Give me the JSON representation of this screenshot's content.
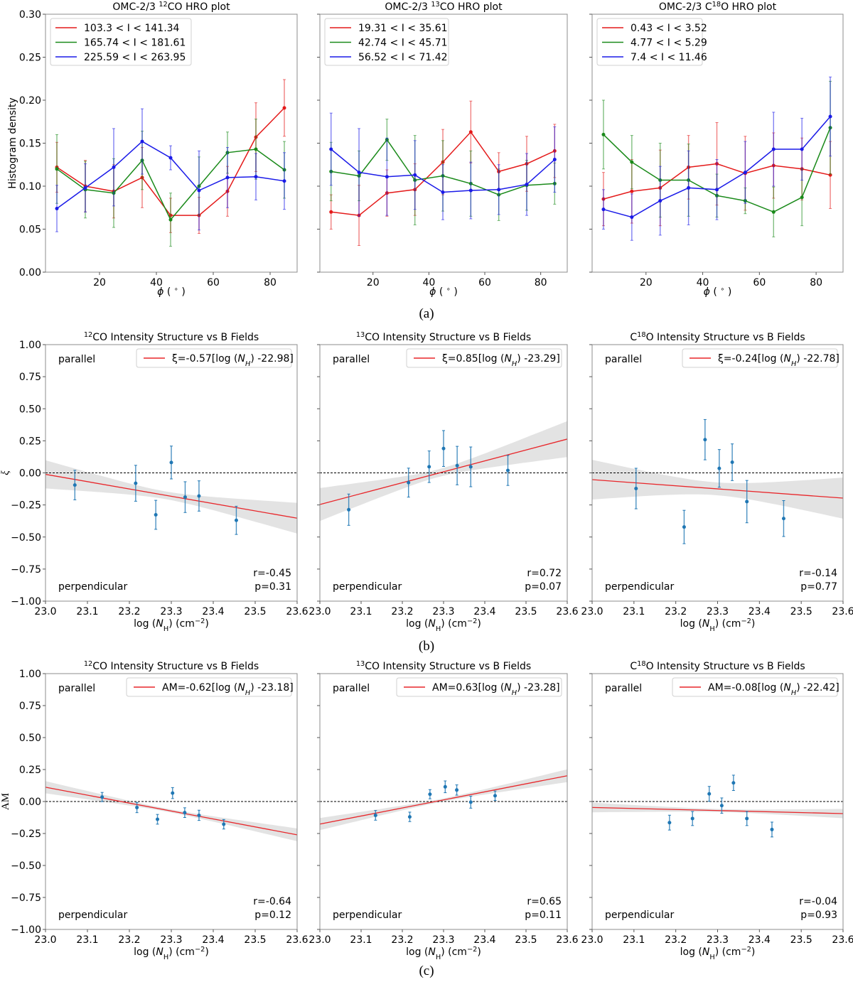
{
  "figure": {
    "captions": [
      "(a)",
      "(b)",
      "(c)"
    ]
  },
  "chart_data": [
    {
      "type": "line",
      "title": "OMC-2/3 ¹²CO HRO plot",
      "xlabel": "ϕ (°)",
      "ylabel": "Histogram density",
      "xlim": [
        1,
        89.5
      ],
      "ylim": [
        0,
        0.3
      ],
      "xticks": [
        20,
        40,
        60,
        80
      ],
      "yticks": [
        0.0,
        0.05,
        0.1,
        0.15,
        0.2,
        0.25,
        0.3
      ],
      "legend_position": "top-left",
      "x": [
        5,
        15,
        25,
        35,
        45,
        55,
        65,
        75,
        85
      ],
      "series": [
        {
          "name": "103.3 < I < 141.34",
          "color": "#e41a1a",
          "values": [
            0.122,
            0.1,
            0.094,
            0.11,
            0.066,
            0.066,
            0.094,
            0.157,
            0.191
          ],
          "errors": [
            0.029,
            0.03,
            0.031,
            0.035,
            0.02,
            0.021,
            0.029,
            0.04,
            0.033
          ]
        },
        {
          "name": "165.74 < I < 181.61",
          "color": "#1a8a1a",
          "values": [
            0.12,
            0.096,
            0.092,
            0.13,
            0.061,
            0.1,
            0.139,
            0.143,
            0.119
          ],
          "errors": [
            0.04,
            0.033,
            0.04,
            0.034,
            0.031,
            0.034,
            0.024,
            0.035,
            0.033
          ]
        },
        {
          "name": "225.59 < I < 263.95",
          "color": "#1a1ae8",
          "values": [
            0.074,
            0.098,
            0.122,
            0.152,
            0.133,
            0.095,
            0.11,
            0.111,
            0.106
          ],
          "errors": [
            0.027,
            0.028,
            0.045,
            0.038,
            0.014,
            0.046,
            0.035,
            0.027,
            0.033
          ]
        }
      ]
    },
    {
      "type": "line",
      "title": "OMC-2/3 ¹³CO HRO plot",
      "xlabel": "ϕ (°)",
      "ylabel": "",
      "xlim": [
        1,
        89.5
      ],
      "ylim": [
        0,
        0.3
      ],
      "xticks": [
        20,
        40,
        60,
        80
      ],
      "yticks": [
        0.0,
        0.05,
        0.1,
        0.15,
        0.2,
        0.25,
        0.3
      ],
      "legend_position": "top-left",
      "x": [
        5,
        15,
        25,
        35,
        45,
        55,
        65,
        75,
        85
      ],
      "series": [
        {
          "name": "19.31 < I < 35.61",
          "color": "#e41a1a",
          "values": [
            0.07,
            0.066,
            0.092,
            0.096,
            0.128,
            0.163,
            0.117,
            0.126,
            0.141
          ],
          "errors": [
            0.02,
            0.035,
            0.027,
            0.03,
            0.038,
            0.036,
            0.022,
            0.032,
            0.031
          ]
        },
        {
          "name": "42.74 < I < 45.71",
          "color": "#1a8a1a",
          "values": [
            0.117,
            0.112,
            0.154,
            0.107,
            0.112,
            0.103,
            0.09,
            0.101,
            0.103
          ],
          "errors": [
            0.034,
            0.029,
            0.024,
            0.052,
            0.041,
            0.038,
            0.03,
            0.029,
            0.024
          ]
        },
        {
          "name": "56.52 < I < 71.42",
          "color": "#1a1ae8",
          "values": [
            0.143,
            0.116,
            0.111,
            0.113,
            0.093,
            0.095,
            0.096,
            0.102,
            0.131
          ],
          "errors": [
            0.042,
            0.051,
            0.045,
            0.04,
            0.032,
            0.033,
            0.029,
            0.036,
            0.038
          ]
        }
      ]
    },
    {
      "type": "line",
      "title": "OMC-2/3 C¹⁸O HRO plot",
      "xlabel": "ϕ (°)",
      "ylabel": "",
      "xlim": [
        1,
        89.5
      ],
      "ylim": [
        0,
        0.3
      ],
      "xticks": [
        20,
        40,
        60,
        80
      ],
      "yticks": [
        0.0,
        0.05,
        0.1,
        0.15,
        0.2,
        0.25,
        0.3
      ],
      "legend_position": "top-left",
      "x": [
        5,
        15,
        25,
        35,
        45,
        55,
        65,
        75,
        85
      ],
      "series": [
        {
          "name": "0.43 < I < 3.52",
          "color": "#e41a1a",
          "values": [
            0.085,
            0.094,
            0.098,
            0.122,
            0.126,
            0.115,
            0.124,
            0.12,
            0.113
          ],
          "errors": [
            0.031,
            0.037,
            0.044,
            0.037,
            0.048,
            0.043,
            0.038,
            0.036,
            0.039
          ]
        },
        {
          "name": "4.77 < I < 5.29",
          "color": "#1a8a1a",
          "values": [
            0.16,
            0.128,
            0.107,
            0.107,
            0.089,
            0.083,
            0.07,
            0.087,
            0.168
          ],
          "errors": [
            0.04,
            0.031,
            0.043,
            0.042,
            0.025,
            0.015,
            0.029,
            0.033,
            0.054
          ]
        },
        {
          "name": "7.4 < I < 11.46",
          "color": "#1a1ae8",
          "values": [
            0.073,
            0.064,
            0.083,
            0.098,
            0.096,
            0.116,
            0.143,
            0.143,
            0.181
          ],
          "errors": [
            0.023,
            0.027,
            0.04,
            0.043,
            0.035,
            0.036,
            0.043,
            0.036,
            0.046
          ]
        }
      ]
    },
    {
      "type": "scatter",
      "title": "¹²CO Intensity Structure vs B Fields",
      "xlabel": "log (N_H) (cm⁻²)",
      "ylabel": "ξ",
      "xlim": [
        23.0,
        23.6
      ],
      "ylim": [
        -1.0,
        1.0
      ],
      "xticks": [
        23.0,
        23.1,
        23.2,
        23.3,
        23.4,
        23.5,
        23.6
      ],
      "yticks": [
        -1.0,
        -0.75,
        -0.5,
        -0.25,
        0.0,
        0.25,
        0.5,
        0.75,
        1.0
      ],
      "legend": "ξ=-0.57[log (N_H) -22.98]",
      "legend_position": "top-right",
      "annotations": {
        "top_left": "parallel",
        "bottom_left": "perpendicular",
        "r": "r=-0.45",
        "p": "p=0.31"
      },
      "points": {
        "x": [
          23.07,
          23.215,
          23.263,
          23.3,
          23.333,
          23.366,
          23.455
        ],
        "y": [
          -0.095,
          -0.081,
          -0.327,
          0.081,
          -0.189,
          -0.18,
          -0.37
        ],
        "errors": [
          0.115,
          0.14,
          0.113,
          0.128,
          0.12,
          0.118,
          0.11
        ]
      },
      "fit": {
        "slope": -0.57,
        "intercept_x": 22.98,
        "band_halfwidth_at_ends": [
          0.12,
          0.12
        ],
        "band_halfwidth_mid": 0.03
      }
    },
    {
      "type": "scatter",
      "title": "¹³CO Intensity Structure vs B Fields",
      "xlabel": "log (N_H) (cm⁻²)",
      "ylabel": "",
      "xlim": [
        23.0,
        23.6
      ],
      "ylim": [
        -1.0,
        1.0
      ],
      "xticks": [
        23.0,
        23.1,
        23.2,
        23.3,
        23.4,
        23.5,
        23.6
      ],
      "yticks": [
        -1.0,
        -0.75,
        -0.5,
        -0.25,
        0.0,
        0.25,
        0.5,
        0.75,
        1.0
      ],
      "legend": "ξ=0.85[log (N_H) -23.29]",
      "legend_position": "top-right",
      "annotations": {
        "top_left": "parallel",
        "bottom_left": "perpendicular",
        "r": "r=0.72",
        "p": "p=0.07"
      },
      "points": {
        "x": [
          23.07,
          23.215,
          23.265,
          23.3,
          23.333,
          23.366,
          23.456
        ],
        "y": [
          -0.287,
          -0.076,
          0.048,
          0.19,
          0.057,
          0.047,
          0.019
        ],
        "errors": [
          0.122,
          0.113,
          0.123,
          0.14,
          0.15,
          0.155,
          0.117
        ]
      },
      "fit": {
        "slope": 0.85,
        "intercept_x": 23.29,
        "band_halfwidth_at_ends": [
          0.13,
          0.14
        ],
        "band_halfwidth_mid": 0.03
      }
    },
    {
      "type": "scatter",
      "title": "C¹⁸O Intensity Structure vs B Fields",
      "xlabel": "log (N_H) (cm⁻²)",
      "ylabel": "",
      "xlim": [
        23.0,
        23.6
      ],
      "ylim": [
        -1.0,
        1.0
      ],
      "xticks": [
        23.0,
        23.1,
        23.2,
        23.3,
        23.4,
        23.5,
        23.6
      ],
      "yticks": [
        -1.0,
        -0.75,
        -0.5,
        -0.25,
        0.0,
        0.25,
        0.5,
        0.75,
        1.0
      ],
      "legend": "ξ=-0.24[log (N_H) -22.78]",
      "legend_position": "top-right",
      "annotations": {
        "top_left": "parallel",
        "bottom_left": "perpendicular",
        "r": "r=-0.14",
        "p": "p=0.77"
      },
      "points": {
        "x": [
          23.105,
          23.22,
          23.27,
          23.304,
          23.335,
          23.37,
          23.458
        ],
        "y": [
          -0.122,
          -0.422,
          0.259,
          0.035,
          0.083,
          -0.224,
          -0.356
        ],
        "errors": [
          0.158,
          0.13,
          0.157,
          0.147,
          0.143,
          0.165,
          0.14
        ]
      },
      "fit": {
        "slope": -0.24,
        "intercept_x": 22.78,
        "band_halfwidth_at_ends": [
          0.16,
          0.16
        ],
        "band_halfwidth_mid": 0.05
      }
    },
    {
      "type": "scatter",
      "title": "¹²CO Intensity Structure vs B Fields",
      "xlabel": "log (N_H) (cm⁻²)",
      "ylabel": "AM",
      "xlim": [
        23.0,
        23.6
      ],
      "ylim": [
        -1.0,
        1.0
      ],
      "xticks": [
        23.0,
        23.1,
        23.2,
        23.3,
        23.4,
        23.5,
        23.6
      ],
      "yticks": [
        -1.0,
        -0.75,
        -0.5,
        -0.25,
        0.0,
        0.25,
        0.5,
        0.75,
        1.0
      ],
      "legend": "AM=-0.62[log (N_H) -23.18]",
      "legend_position": "top-right",
      "annotations": {
        "top_left": "parallel",
        "bottom_left": "perpendicular",
        "r": "r=-0.64",
        "p": "p=0.12"
      },
      "points": {
        "x": [
          23.135,
          23.218,
          23.267,
          23.303,
          23.332,
          23.366,
          23.425
        ],
        "y": [
          0.035,
          -0.047,
          -0.139,
          0.066,
          -0.087,
          -0.108,
          -0.178
        ],
        "errors": [
          0.036,
          0.04,
          0.038,
          0.043,
          0.038,
          0.04,
          0.037
        ]
      },
      "fit": {
        "slope": -0.62,
        "intercept_x": 23.18,
        "band_halfwidth_at_ends": [
          0.05,
          0.05
        ],
        "band_halfwidth_mid": 0.012
      }
    },
    {
      "type": "scatter",
      "title": "¹³CO Intensity Structure vs B Fields",
      "xlabel": "log (N_H) (cm⁻²)",
      "ylabel": "",
      "xlim": [
        23.0,
        23.6
      ],
      "ylim": [
        -1.0,
        1.0
      ],
      "xticks": [
        23.0,
        23.1,
        23.2,
        23.3,
        23.4,
        23.5,
        23.6
      ],
      "yticks": [
        -1.0,
        -0.75,
        -0.5,
        -0.25,
        0.0,
        0.25,
        0.5,
        0.75,
        1.0
      ],
      "legend": "AM=0.63[log (N_H) -23.28]",
      "legend_position": "top-right",
      "annotations": {
        "top_left": "parallel",
        "bottom_left": "perpendicular",
        "r": "r=0.65",
        "p": "p=0.11"
      },
      "points": {
        "x": [
          23.135,
          23.218,
          23.267,
          23.304,
          23.332,
          23.366,
          23.425
        ],
        "y": [
          -0.108,
          -0.12,
          0.057,
          0.115,
          0.09,
          -0.005,
          0.045
        ],
        "errors": [
          0.038,
          0.037,
          0.036,
          0.046,
          0.04,
          0.047,
          0.037
        ]
      },
      "fit": {
        "slope": 0.63,
        "intercept_x": 23.28,
        "band_halfwidth_at_ends": [
          0.045,
          0.05
        ],
        "band_halfwidth_mid": 0.012
      }
    },
    {
      "type": "scatter",
      "title": "C¹⁸O Intensity Structure vs B Fields",
      "xlabel": "log (N_H) (cm⁻²)",
      "ylabel": "",
      "xlim": [
        23.0,
        23.6
      ],
      "ylim": [
        -1.0,
        1.0
      ],
      "xticks": [
        23.0,
        23.1,
        23.2,
        23.3,
        23.4,
        23.5,
        23.6
      ],
      "yticks": [
        -1.0,
        -0.75,
        -0.5,
        -0.25,
        0.0,
        0.25,
        0.5,
        0.75,
        1.0
      ],
      "legend": "AM=-0.08[log (N_H) -22.42]",
      "legend_position": "top-right",
      "annotations": {
        "top_left": "parallel",
        "bottom_left": "perpendicular",
        "r": "r=-0.04",
        "p": "p=0.93"
      },
      "points": {
        "x": [
          23.185,
          23.24,
          23.28,
          23.31,
          23.338,
          23.37,
          23.43
        ],
        "y": [
          -0.165,
          -0.133,
          0.06,
          -0.032,
          0.146,
          -0.133,
          -0.219
        ],
        "errors": [
          0.058,
          0.055,
          0.058,
          0.06,
          0.06,
          0.055,
          0.058
        ]
      },
      "fit": {
        "slope": -0.08,
        "intercept_x": 22.42,
        "band_halfwidth_at_ends": [
          0.038,
          0.038
        ],
        "band_halfwidth_mid": 0.012
      }
    }
  ]
}
